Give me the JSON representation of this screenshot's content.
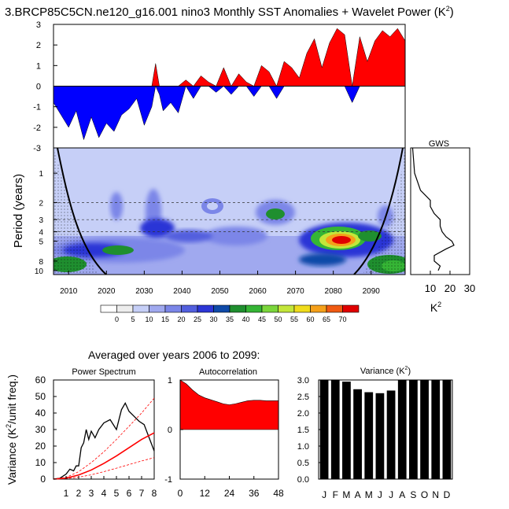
{
  "figure": {
    "title": "3.BRCP85C5CN.ne120_g16.001 nino3 Monthly SST Anomalies + Wavelet Power (K",
    "title_sup": "2",
    "title_end": ")",
    "averaged_label": "Averaged over years 2006 to 2099:"
  },
  "chart_data": [
    {
      "type": "area",
      "name": "sst_anomaly_timeseries",
      "x_range": [
        2006,
        2099
      ],
      "ylim": [
        -3,
        3
      ],
      "yticks": [
        "3",
        "2",
        "1",
        "0",
        "-1",
        "-2",
        "-3"
      ],
      "colors": {
        "positive": "#ff0000",
        "negative": "#0000ff"
      },
      "x": [
        2006,
        2008,
        2010,
        2012,
        2014,
        2016,
        2018,
        2020,
        2022,
        2024,
        2026,
        2028,
        2030,
        2032,
        2033,
        2034,
        2035,
        2037,
        2039,
        2041,
        2043,
        2045,
        2047,
        2049,
        2051,
        2053,
        2055,
        2057,
        2059,
        2061,
        2063,
        2065,
        2067,
        2069,
        2071,
        2073,
        2075,
        2077,
        2079,
        2081,
        2083,
        2085,
        2087,
        2089,
        2091,
        2093,
        2095,
        2097,
        2099
      ],
      "y": [
        -0.8,
        -1.4,
        -2.0,
        -1.2,
        -2.6,
        -1.5,
        -2.5,
        -1.8,
        -2.2,
        -1.4,
        -1.1,
        -0.6,
        -1.9,
        -1.0,
        1.1,
        -0.4,
        -1.2,
        -0.8,
        -1.3,
        0.3,
        -0.6,
        0.5,
        0.2,
        -0.3,
        0.9,
        -0.4,
        0.6,
        0.2,
        -0.5,
        1.0,
        0.7,
        -0.6,
        1.2,
        0.9,
        0.4,
        1.6,
        2.3,
        0.9,
        2.1,
        2.8,
        2.5,
        -0.8,
        2.4,
        1.2,
        2.2,
        2.7,
        2.4,
        2.8,
        2.2
      ]
    },
    {
      "type": "heatmap",
      "name": "wavelet_power",
      "x_range": [
        2006,
        2099
      ],
      "xticks": [
        "2010",
        "2020",
        "2030",
        "2040",
        "2050",
        "2060",
        "2070",
        "2080",
        "2090"
      ],
      "ylabel": "Period (years)",
      "yticks": [
        "1",
        "2",
        "3",
        "4",
        "5",
        "8",
        "10"
      ],
      "dashed_periods": [
        2,
        3,
        4
      ],
      "colorbar_labels": [
        "0",
        "5",
        "10",
        "15",
        "20",
        "25",
        "30",
        "35",
        "40",
        "45",
        "50",
        "55",
        "60",
        "65",
        "70"
      ],
      "colorbar_colors": [
        "#ffffff",
        "#ededed",
        "#c6cff7",
        "#a0a9ef",
        "#7b86e8",
        "#525fde",
        "#2c36d6",
        "#0f4aa8",
        "#1f8f2f",
        "#35b535",
        "#7bd63b",
        "#c3e63a",
        "#f0dc1c",
        "#f5a01a",
        "#f05a12",
        "#e00000"
      ],
      "hotspots": [
        {
          "year": 2030,
          "period": 5.5,
          "power": 30
        },
        {
          "year": 2065,
          "period": 3.2,
          "power": 40
        },
        {
          "year": 2082,
          "period": 4.6,
          "power": 70
        },
        {
          "year": 2095,
          "period": 8.0,
          "power": 45
        },
        {
          "year": 2020,
          "period": 6.0,
          "power": 35
        }
      ]
    },
    {
      "type": "line",
      "name": "global_wavelet_spectrum",
      "title": "GWS",
      "xlim": [
        0,
        30
      ],
      "xticks": [
        "10",
        "20",
        "30"
      ],
      "xlabel": "K",
      "xlabel_sup": "2",
      "period": [
        0.55,
        1.0,
        1.5,
        1.9,
        2.2,
        2.6,
        3.0,
        3.5,
        4.0,
        4.5,
        5.0,
        5.5,
        6.0,
        7.0,
        8.0,
        9.0,
        10.0
      ],
      "power": [
        1,
        2,
        5,
        10,
        10,
        12,
        15,
        15,
        16,
        18,
        21,
        22,
        18,
        12,
        12,
        15,
        14
      ]
    },
    {
      "type": "line",
      "name": "power_spectrum",
      "title": "Power Spectrum",
      "ylabel": "Variance (K",
      "ylabel_sup": "2",
      "ylabel_end": "/unit freq.)",
      "xlim": [
        0,
        8
      ],
      "ylim": [
        0,
        60
      ],
      "xticks": [
        "1",
        "2",
        "3",
        "4",
        "5",
        "6",
        "7",
        "8"
      ],
      "yticks": [
        "0",
        "10",
        "20",
        "30",
        "40",
        "50",
        "60"
      ],
      "series": [
        {
          "style": "spectrum",
          "color": "#000000",
          "x": [
            0,
            0.5,
            1.0,
            1.3,
            1.6,
            1.8,
            2.0,
            2.2,
            2.4,
            2.6,
            2.8,
            3.0,
            3.3,
            3.6,
            4.0,
            4.5,
            5.0,
            5.4,
            5.7,
            6.0,
            6.4,
            6.8,
            7.2,
            7.6,
            8.0
          ],
          "y": [
            0,
            0.5,
            3,
            6,
            5,
            8,
            8,
            19,
            22,
            30,
            24,
            29,
            25,
            30,
            34,
            36,
            30,
            42,
            46,
            41,
            38,
            35,
            33,
            25,
            17
          ]
        },
        {
          "style": "red_line",
          "color": "#ff0000",
          "x": [
            0,
            1,
            2,
            3,
            4,
            5,
            6,
            7,
            8
          ],
          "y": [
            0,
            0.6,
            2.5,
            5.5,
            9.5,
            14,
            19,
            24,
            28
          ]
        },
        {
          "style": "red_dashed_upper",
          "color": "#ff0000",
          "x": [
            0,
            1,
            2,
            3,
            4,
            5,
            6,
            7,
            8
          ],
          "y": [
            0,
            1,
            4.5,
            10,
            16.5,
            24,
            32,
            40,
            49
          ]
        },
        {
          "style": "red_dashed_lower",
          "color": "#ff0000",
          "x": [
            0,
            1,
            2,
            3,
            4,
            5,
            6,
            7,
            8
          ],
          "y": [
            0,
            0.3,
            1.2,
            2.6,
            4.5,
            6.6,
            8.8,
            11,
            13
          ]
        }
      ]
    },
    {
      "type": "area",
      "name": "autocorrelation",
      "title": "Autocorrelation",
      "xlim": [
        0,
        48
      ],
      "ylim": [
        -1,
        1
      ],
      "xticks": [
        "0",
        "12",
        "24",
        "36",
        "48"
      ],
      "yticks": [
        "1",
        "0",
        "-1"
      ],
      "fill": "#ff0000",
      "x": [
        0,
        3,
        6,
        9,
        12,
        15,
        18,
        21,
        24,
        27,
        30,
        33,
        36,
        39,
        42,
        45,
        48
      ],
      "y": [
        1.0,
        0.92,
        0.8,
        0.7,
        0.64,
        0.6,
        0.56,
        0.52,
        0.5,
        0.52,
        0.55,
        0.58,
        0.59,
        0.59,
        0.58,
        0.58,
        0.58
      ]
    },
    {
      "type": "bar",
      "name": "monthly_variance",
      "title": "Variance (K",
      "title_sup": "2",
      "title_end": ")",
      "ylim": [
        0,
        3
      ],
      "yticks": [
        "3.0",
        "2.5",
        "2.0",
        "1.5",
        "1.0",
        "0.5",
        "0.0"
      ],
      "categories": [
        "J",
        "F",
        "M",
        "A",
        "M",
        "J",
        "J",
        "A",
        "S",
        "O",
        "N",
        "D"
      ],
      "values": [
        3.0,
        3.0,
        2.95,
        2.72,
        2.63,
        2.6,
        2.68,
        3.0,
        3.0,
        3.0,
        3.0,
        3.0
      ]
    }
  ]
}
